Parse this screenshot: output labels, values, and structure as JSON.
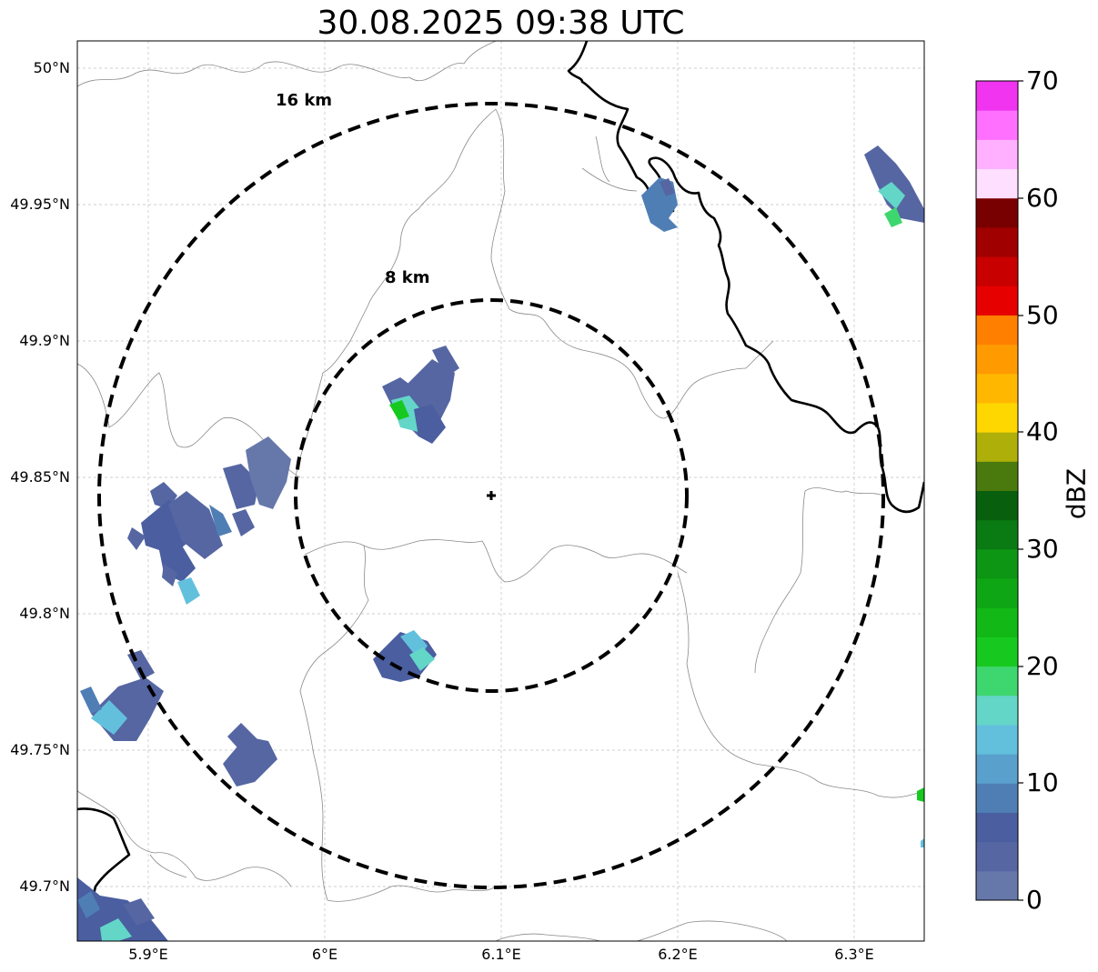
{
  "title": "30.08.2025 09:38 UTC",
  "map": {
    "lat_ticks": [
      "50°N",
      "49.95°N",
      "49.9°N",
      "49.85°N",
      "49.8°N",
      "49.75°N",
      "49.7°N"
    ],
    "lon_ticks": [
      "5.9°E",
      "6°E",
      "6.1°E",
      "6.2°E",
      "6.3°E"
    ],
    "center_marker": "plus-marker",
    "range_rings": [
      {
        "label": "8 km",
        "radius_km": 8
      },
      {
        "label": "16 km",
        "radius_km": 16
      }
    ],
    "gridlines": true
  },
  "colorbar": {
    "label": "dBZ",
    "ticks": [
      "0",
      "10",
      "20",
      "30",
      "40",
      "50",
      "60",
      "70"
    ],
    "colors": [
      "#6677aa",
      "#5566a2",
      "#4a5ea0",
      "#4f7eb5",
      "#5aa0cc",
      "#63c0dd",
      "#63d6c8",
      "#3ed66e",
      "#17c91e",
      "#11b816",
      "#0ea614",
      "#0c9613",
      "#0a7a12",
      "#085f0e",
      "#4a7a0e",
      "#afaf0a",
      "#ffd700",
      "#ffb700",
      "#ff9a00",
      "#ff8000",
      "#e60000",
      "#c80000",
      "#a00000",
      "#780000",
      "#ffdfff",
      "#ffb0ff",
      "#ff70ff",
      "#f034f0"
    ]
  }
}
